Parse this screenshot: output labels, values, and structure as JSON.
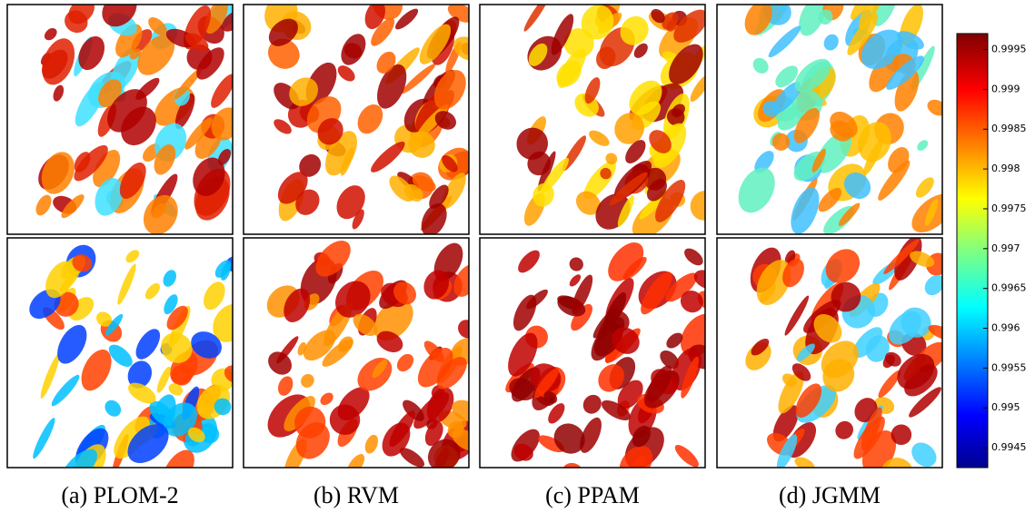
{
  "panels": [
    {
      "caption": "(a) PLOM-2"
    },
    {
      "caption": "(b) RVM"
    },
    {
      "caption": "(c) PPAM"
    },
    {
      "caption": "(d) JGMM"
    }
  ],
  "colorbar": {
    "ylim": [
      0.99425,
      0.9997
    ],
    "yticks": [
      0.9945,
      0.995,
      0.9955,
      0.996,
      0.9965,
      0.997,
      0.9975,
      0.998,
      0.9985,
      0.999,
      0.9995
    ]
  }
}
